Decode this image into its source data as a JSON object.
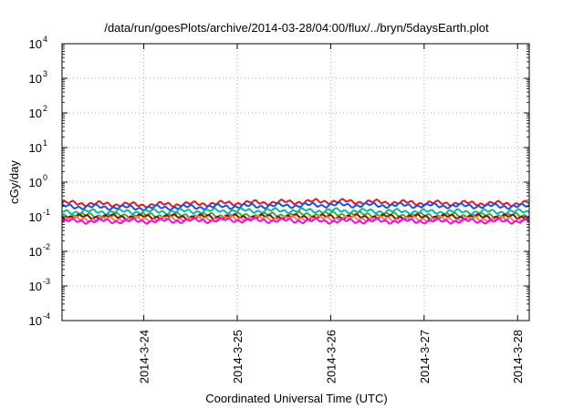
{
  "chart_data": {
    "type": "line",
    "title": "/data/run/goesPlots/archive/2014-03-28/04:00/flux/../bryn/5daysEarth.plot",
    "xlabel": "Coordinated Universal Time (UTC)",
    "ylabel": "cGy/day",
    "yscale": "log",
    "ylim": [
      0.0001,
      10000
    ],
    "xlim": [
      "2014-03-23 03:00",
      "2014-03-28 03:00"
    ],
    "grid": true,
    "legend": "none",
    "y_tick_labels": [
      {
        "base": "10",
        "exp": "-4",
        "value": 0.0001
      },
      {
        "base": "10",
        "exp": "-3",
        "value": 0.001
      },
      {
        "base": "10",
        "exp": "-2",
        "value": 0.01
      },
      {
        "base": "10",
        "exp": "-1",
        "value": 0.1
      },
      {
        "base": "10",
        "exp": "0",
        "value": 1
      },
      {
        "base": "10",
        "exp": "1",
        "value": 10
      },
      {
        "base": "10",
        "exp": "2",
        "value": 100
      },
      {
        "base": "10",
        "exp": "3",
        "value": 1000
      },
      {
        "base": "10",
        "exp": "4",
        "value": 10000
      }
    ],
    "x_tick_labels": [
      "2014-3-24",
      "2014-3-25",
      "2014-3-26",
      "2014-3-27",
      "2014-3-28"
    ],
    "x_tick_dates": [
      "2014-03-24",
      "2014-03-25",
      "2014-03-26",
      "2014-03-27",
      "2014-03-28"
    ],
    "series": [
      {
        "color": "#e41a1c",
        "x": [
          "2014-03-23 03:00",
          "2014-03-24 00:00",
          "2014-03-25 00:00",
          "2014-03-26 00:00",
          "2014-03-27 00:00",
          "2014-03-28 00:00",
          "2014-03-28 03:00"
        ],
        "values": [
          0.25,
          0.22,
          0.25,
          0.28,
          0.25,
          0.24,
          0.25
        ]
      },
      {
        "color": "#1f4fe0",
        "x": [
          "2014-03-23 03:00",
          "2014-03-24 00:00",
          "2014-03-25 00:00",
          "2014-03-26 00:00",
          "2014-03-27 00:00",
          "2014-03-28 00:00",
          "2014-03-28 03:00"
        ],
        "values": [
          0.2,
          0.18,
          0.2,
          0.22,
          0.21,
          0.2,
          0.2
        ]
      },
      {
        "color": "#17b3a8",
        "x": [
          "2014-03-23 03:00",
          "2014-03-24 00:00",
          "2014-03-25 00:00",
          "2014-03-26 00:00",
          "2014-03-27 00:00",
          "2014-03-28 00:00",
          "2014-03-28 03:00"
        ],
        "values": [
          0.14,
          0.14,
          0.15,
          0.15,
          0.14,
          0.14,
          0.14
        ]
      },
      {
        "color": "#3ab03a",
        "x": [
          "2014-03-23 03:00",
          "2014-03-24 00:00",
          "2014-03-25 00:00",
          "2014-03-26 00:00",
          "2014-03-27 00:00",
          "2014-03-28 00:00",
          "2014-03-28 03:00"
        ],
        "values": [
          0.11,
          0.11,
          0.11,
          0.12,
          0.11,
          0.11,
          0.11
        ]
      },
      {
        "color": "#7a1020",
        "x": [
          "2014-03-23 03:00",
          "2014-03-24 00:00",
          "2014-03-25 00:00",
          "2014-03-26 00:00",
          "2014-03-27 00:00",
          "2014-03-28 00:00",
          "2014-03-28 03:00"
        ],
        "values": [
          0.1,
          0.1,
          0.1,
          0.1,
          0.1,
          0.1,
          0.1
        ]
      },
      {
        "color": "#f08a24",
        "x": [
          "2014-03-23 03:00",
          "2014-03-24 00:00",
          "2014-03-25 00:00",
          "2014-03-26 00:00",
          "2014-03-27 00:00",
          "2014-03-28 00:00",
          "2014-03-28 03:00"
        ],
        "values": [
          0.085,
          0.085,
          0.09,
          0.09,
          0.085,
          0.085,
          0.085
        ]
      },
      {
        "color": "#ff00ff",
        "x": [
          "2014-03-23 03:00",
          "2014-03-24 00:00",
          "2014-03-25 00:00",
          "2014-03-26 00:00",
          "2014-03-27 00:00",
          "2014-03-28 00:00",
          "2014-03-28 03:00"
        ],
        "values": [
          0.075,
          0.075,
          0.08,
          0.075,
          0.075,
          0.075,
          0.075
        ]
      }
    ]
  }
}
